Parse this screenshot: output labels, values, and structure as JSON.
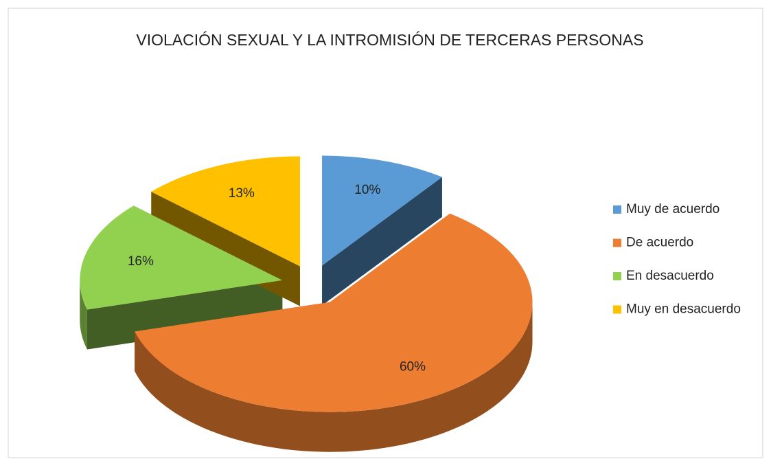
{
  "chart_data": {
    "type": "pie",
    "title": "VIOLACIÓN SEXUAL Y LA INTROMISIÓN DE TERCERAS PERSONAS",
    "categories": [
      "Muy de acuerdo",
      "De acuerdo",
      "En desacuerdo",
      "Muy en desacuerdo"
    ],
    "values": [
      10,
      60,
      16,
      13
    ],
    "value_labels": [
      "10%",
      "60%",
      "16%",
      "13%"
    ],
    "colors": [
      "#5b9bd5",
      "#ed7d31",
      "#92d050",
      "#ffc000"
    ],
    "legend": "right"
  }
}
